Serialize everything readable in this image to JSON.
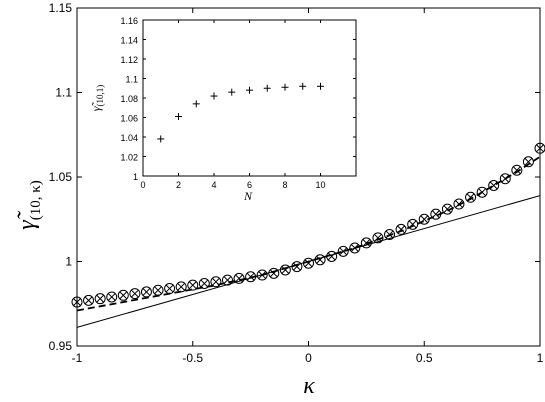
{
  "chart_data": [
    {
      "type": "line",
      "xlabel": "κ",
      "ylabel": {
        "main": "γ̃",
        "sub": "(10, κ)"
      },
      "xlim": [
        -1,
        1
      ],
      "ylim": [
        0.95,
        1.15
      ],
      "xticks": [
        -1,
        -0.5,
        0,
        0.5,
        1
      ],
      "xtick_labels": [
        "-1",
        "-0.5",
        "0",
        "0.5",
        "1"
      ],
      "yticks": [
        0.95,
        1,
        1.05,
        1.1,
        1.15
      ],
      "ytick_labels": [
        "0.95",
        "1",
        "1.05",
        "1.1",
        "1.15"
      ],
      "grid": false,
      "series": [
        {
          "style": "markers-circle-cross",
          "x": [
            -1,
            -0.95,
            -0.9,
            -0.85,
            -0.8,
            -0.75,
            -0.7,
            -0.65,
            -0.6,
            -0.55,
            -0.5,
            -0.45,
            -0.4,
            -0.35,
            -0.3,
            -0.25,
            -0.2,
            -0.15,
            -0.1,
            -0.05,
            0,
            0.05,
            0.1,
            0.15,
            0.2,
            0.25,
            0.3,
            0.35,
            0.4,
            0.45,
            0.5,
            0.55,
            0.6,
            0.65,
            0.7,
            0.75,
            0.8,
            0.85,
            0.9,
            0.95,
            1
          ],
          "y": [
            0.976,
            0.977,
            0.978,
            0.979,
            0.98,
            0.981,
            0.982,
            0.983,
            0.984,
            0.985,
            0.986,
            0.987,
            0.988,
            0.989,
            0.99,
            0.991,
            0.992,
            0.993,
            0.995,
            0.997,
            0.999,
            1.001,
            1.003,
            1.006,
            1.008,
            1.011,
            1.014,
            1.016,
            1.019,
            1.022,
            1.025,
            1.028,
            1.031,
            1.034,
            1.038,
            1.041,
            1.045,
            1.049,
            1.054,
            1.059,
            1.067
          ]
        },
        {
          "style": "dashed",
          "x": [
            -1,
            -0.8,
            -0.6,
            -0.4,
            -0.2,
            0,
            0.2,
            0.4,
            0.5,
            0.6,
            0.7,
            0.8,
            0.9,
            1
          ],
          "y": [
            0.971,
            0.976,
            0.981,
            0.986,
            0.992,
            1.0,
            1.008,
            1.018,
            1.024,
            1.03,
            1.037,
            1.045,
            1.053,
            1.062
          ]
        },
        {
          "style": "solid-thin",
          "x": [
            -1,
            1
          ],
          "y": [
            0.961,
            1.039
          ]
        }
      ]
    },
    {
      "type": "scatter",
      "role": "inset",
      "xlabel": "N",
      "ylabel": {
        "main": "γ̃",
        "sub": "(10,1)"
      },
      "xlim": [
        0,
        12
      ],
      "ylim": [
        1.0,
        1.16
      ],
      "xticks": [
        0,
        2,
        4,
        6,
        8,
        10
      ],
      "xtick_labels": [
        "0",
        "2",
        "4",
        "6",
        "8",
        "10"
      ],
      "yticks": [
        1.0,
        1.02,
        1.04,
        1.06,
        1.08,
        1.1,
        1.12,
        1.14,
        1.16
      ],
      "ytick_labels": [
        "1",
        "1.02",
        "1.04",
        "1.06",
        "1.08",
        "1.1",
        "1.12",
        "1.14",
        "1.16"
      ],
      "grid": false,
      "series": [
        {
          "style": "markers-plus",
          "x": [
            1,
            2,
            3,
            4,
            5,
            6,
            7,
            8,
            9,
            10
          ],
          "y": [
            1.038,
            1.061,
            1.074,
            1.082,
            1.086,
            1.088,
            1.09,
            1.091,
            1.092,
            1.092
          ]
        }
      ]
    }
  ]
}
